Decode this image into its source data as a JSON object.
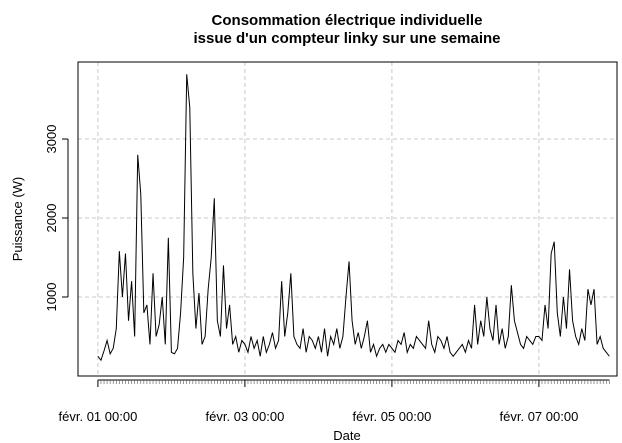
{
  "chart_data": {
    "type": "line",
    "title": [
      "Consommation électrique individuelle",
      "issue d'un compteur linky sur une semaine"
    ],
    "x_label": "Date",
    "y_label": "Puissance (W)",
    "x": [
      0,
      1,
      2,
      3,
      4,
      5,
      6,
      7,
      8,
      9,
      10,
      11,
      12,
      13,
      14,
      15,
      16,
      17,
      18,
      19,
      20,
      21,
      22,
      23,
      24,
      25,
      26,
      27,
      28,
      29,
      30,
      31,
      32,
      33,
      34,
      35,
      36,
      37,
      38,
      39,
      40,
      41,
      42,
      43,
      44,
      45,
      46,
      47,
      48,
      49,
      50,
      51,
      52,
      53,
      54,
      55,
      56,
      57,
      58,
      59,
      60,
      61,
      62,
      63,
      64,
      65,
      66,
      67,
      68,
      69,
      70,
      71,
      72,
      73,
      74,
      75,
      76,
      77,
      78,
      79,
      80,
      81,
      82,
      83,
      84,
      85,
      86,
      87,
      88,
      89,
      90,
      91,
      92,
      93,
      94,
      95,
      96,
      97,
      98,
      99,
      100,
      101,
      102,
      103,
      104,
      105,
      106,
      107,
      108,
      109,
      110,
      111,
      112,
      113,
      114,
      115,
      116,
      117,
      118,
      119,
      120,
      121,
      122,
      123,
      124,
      125,
      126,
      127,
      128,
      129,
      130,
      131,
      132,
      133,
      134,
      135,
      136,
      137,
      138,
      139,
      140,
      141,
      142,
      143,
      144,
      145,
      146,
      147,
      148,
      149,
      150,
      151,
      152,
      153,
      154,
      155,
      156,
      157,
      158,
      159,
      160,
      161,
      162,
      163,
      164,
      165,
      166,
      167
    ],
    "series": [
      {
        "name": "Puissance",
        "color": "#000000",
        "values": [
          250,
          200,
          320,
          450,
          280,
          350,
          600,
          1580,
          1000,
          1550,
          700,
          1200,
          500,
          2800,
          2300,
          800,
          900,
          400,
          1300,
          500,
          650,
          1000,
          400,
          1750,
          300,
          280,
          350,
          800,
          1500,
          3820,
          3400,
          1300,
          600,
          1050,
          400,
          500,
          1100,
          1500,
          2250,
          700,
          500,
          1400,
          600,
          900,
          400,
          500,
          300,
          450,
          400,
          300,
          500,
          350,
          450,
          250,
          500,
          300,
          400,
          550,
          350,
          450,
          1200,
          500,
          800,
          1300,
          500,
          400,
          350,
          600,
          300,
          500,
          450,
          350,
          500,
          300,
          600,
          250,
          500,
          400,
          600,
          350,
          500,
          1000,
          1450,
          700,
          400,
          550,
          350,
          500,
          700,
          300,
          400,
          250,
          350,
          400,
          300,
          400,
          350,
          300,
          450,
          400,
          550,
          300,
          400,
          350,
          500,
          450,
          400,
          350,
          700,
          400,
          300,
          500,
          450,
          350,
          500,
          300,
          250,
          300,
          350,
          400,
          300,
          450,
          350,
          900,
          400,
          700,
          500,
          1000,
          600,
          450,
          900,
          400,
          600,
          350,
          500,
          1150,
          700,
          550,
          400,
          350,
          500,
          450,
          400,
          500,
          500,
          450,
          900,
          600,
          1550,
          1700,
          800,
          500,
          1000,
          600,
          1350,
          700,
          500,
          400,
          600,
          450,
          1100,
          900,
          1100,
          400,
          500,
          350,
          300,
          250
        ]
      }
    ],
    "xlim": [
      -6.5,
      169.5
    ],
    "xticks": [
      {
        "value": 0,
        "label": "févr. 01 00:00"
      },
      {
        "value": 48,
        "label": "févr. 03 00:00"
      },
      {
        "value": 96,
        "label": "févr. 05 00:00"
      },
      {
        "value": 144,
        "label": "févr. 07 00:00"
      }
    ],
    "ylim": [
      0,
      3975
    ],
    "yticks": [
      1000,
      2000,
      3000
    ],
    "grid": true
  }
}
